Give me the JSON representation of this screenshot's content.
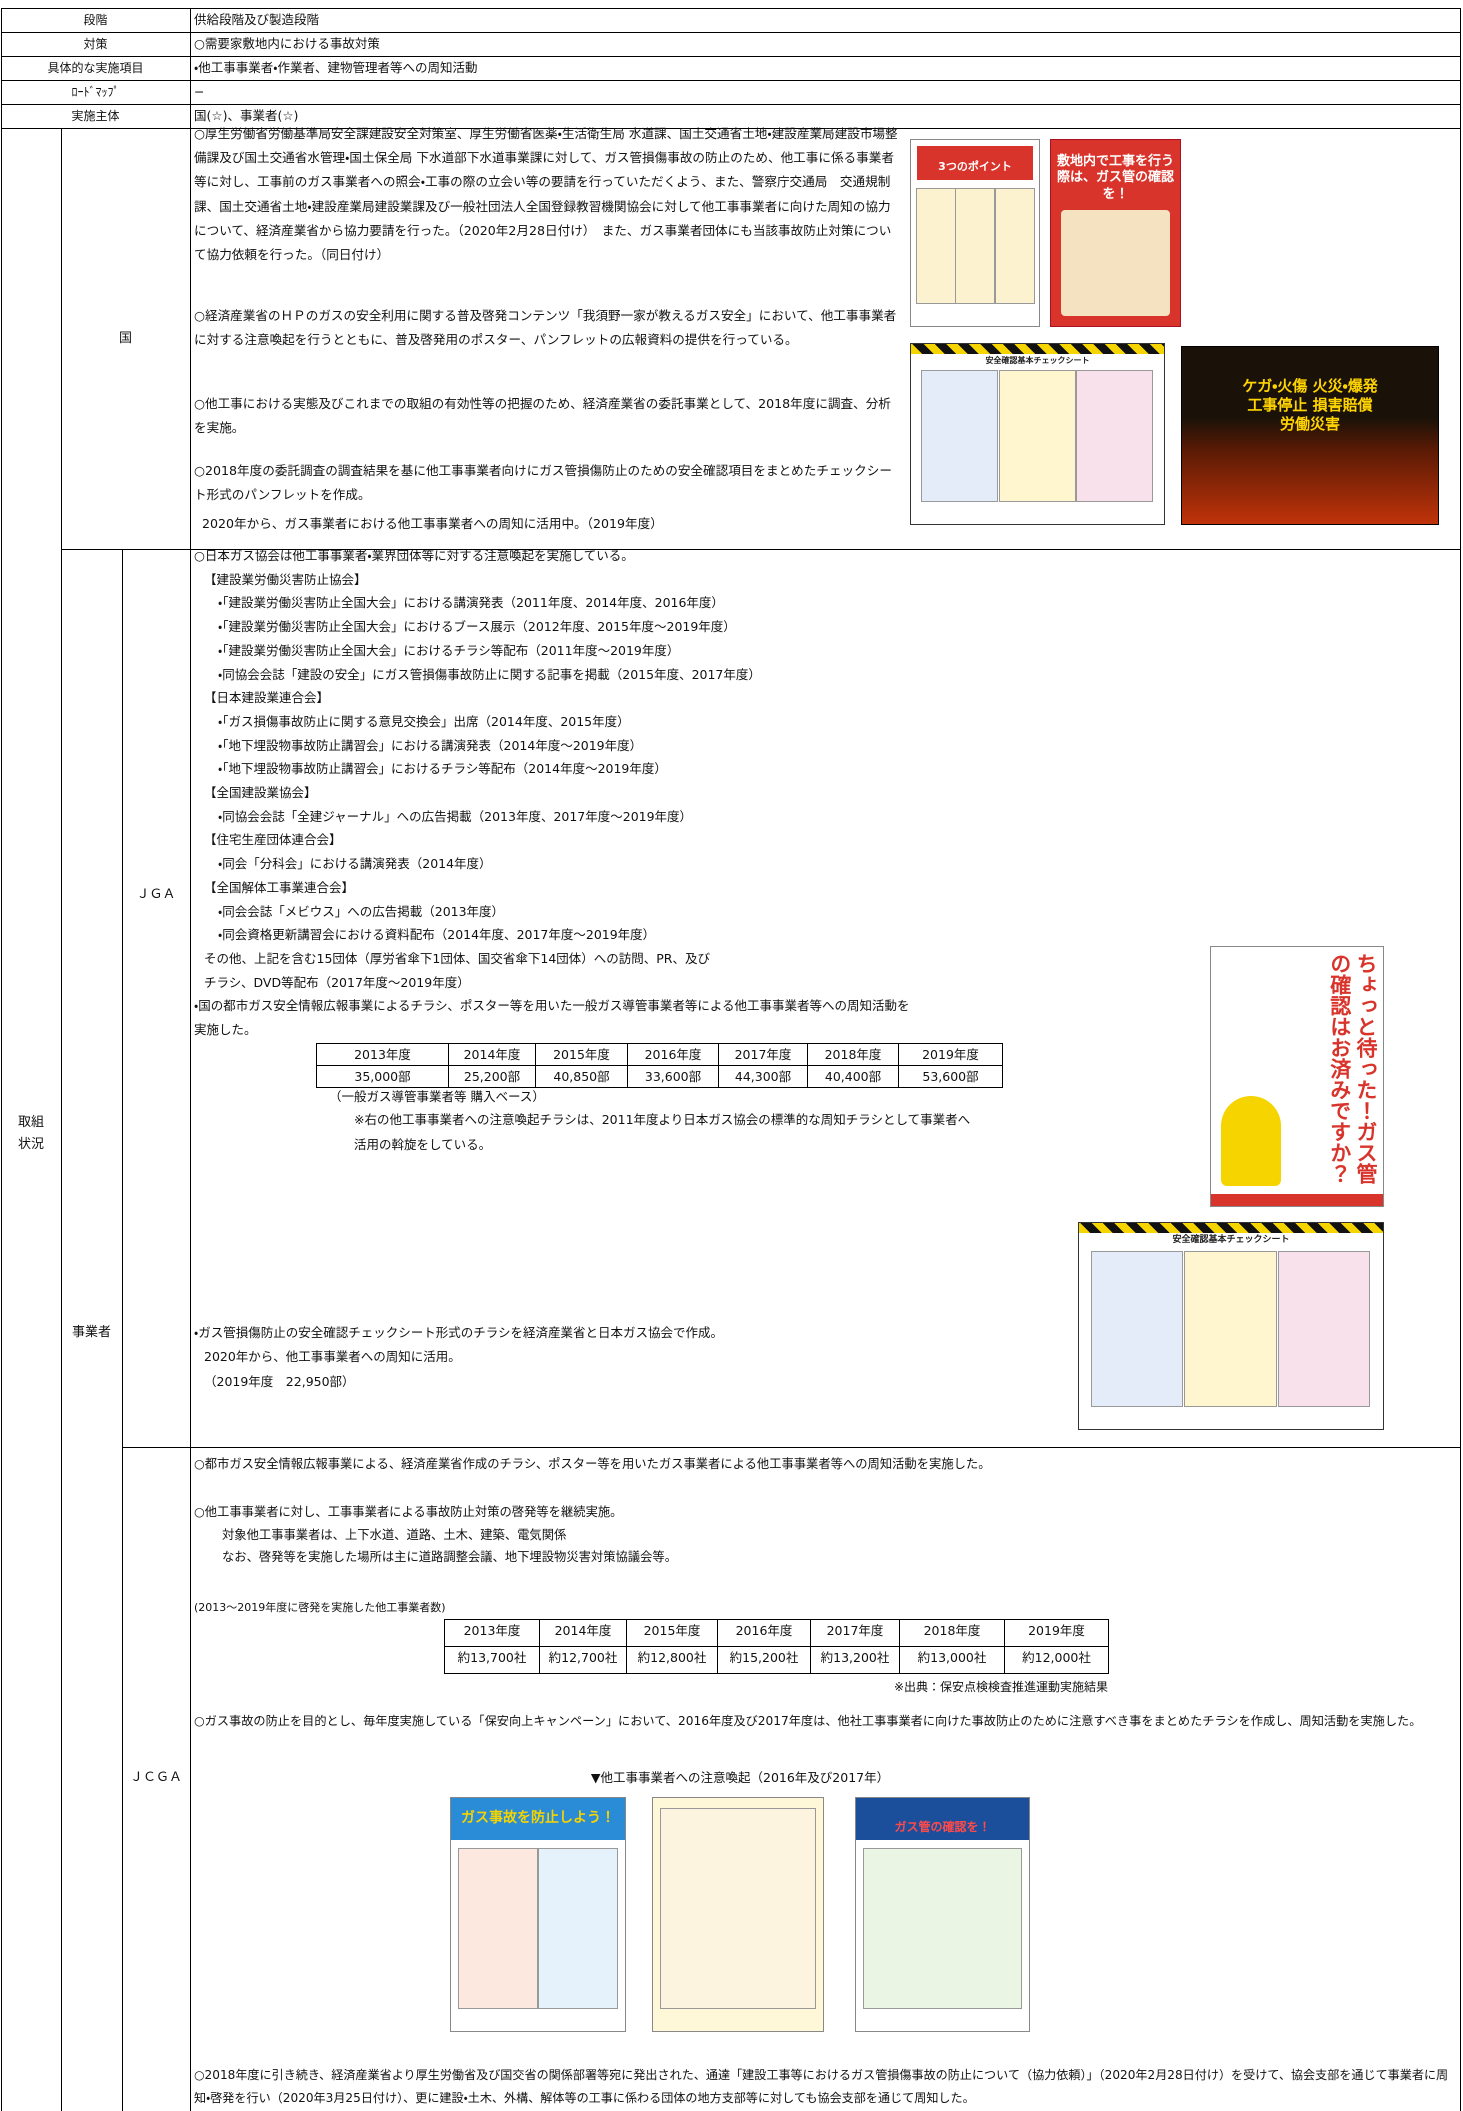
{
  "rows": [
    [
      "段階",
      "供給段階及び製造段階"
    ],
    [
      "対策",
      "○需要家敷地内における事故対策"
    ],
    [
      "具体的な実施項目",
      "・他工事事業者・作業者、建物管理者等への周知活動"
    ],
    [
      "ﾛｰﾄﾞﾏｯﾌﾟ",
      "−"
    ],
    [
      "実施主体",
      "国(☆)、事業者(☆)"
    ]
  ],
  "status_label": "取組状況",
  "kuni": {
    "label": "国",
    "paragraphs": [
      "○厚生労働省労働基準局安全課建設安全対策室、厚生労働省医薬・生活衛生局 水道課、国土交通省土地・建設産業局建設市場整備課及び国土交通省水管理・国土保全局 下水道部下水道事業課に対して、ガス管損傷事故の防止のため、他工事に係る事業者等に対し、工事前のガス事業者への照会・工事の際の立会い等の要請を行っていただくよう、また、警察庁交通局　交通規制課、国土交通省土地・建設産業局建設業課及び一般社団法人全国登録教習機関協会に対して他工事事業者に向けた周知の協力について、経済産業省から協力要請を行った。（2020年2月28日付け）　また、ガス事業者団体にも当該事故防止対策について協力依頼を行った。（同日付け）",
      "○経済産業省のＨＰのガスの安全利用に関する普及啓発コンテンツ「我須野一家が教えるガス安全」において、他工事事業者に対する注意喚起を行うとともに、普及啓発用のポスター、パンフレットの広報資料の提供を行っている。",
      "○他工事における実態及びこれまでの取組の有効性等の把握のため、経済産業省の委託事業として、2018年度に調査、分析を実施。",
      "○2018年度の委託調査の調査結果を基に他工事事業者向けにガス管損傷防止のための安全確認項目をまとめたチェックシート形式のパンフレットを作成。",
      "2020年から、ガス事業者における他工事事業者への周知に活用中。（2019年度）"
    ],
    "posters": [
      "3つのポイント",
      "敷地内で工事を行う際は、ガス管の確認を！",
      "安全確認基本チェックシート",
      "ケガ・火傷 火災・爆発 工事停止 損害賠償 労働災害"
    ]
  },
  "jigyosha": {
    "label": "事業者",
    "jga": {
      "label": "ＪＧＡ",
      "lines": [
        "○日本ガス協会は他工事事業者・業界団体等に対する注意喚起を実施している。",
        "【建設業労働災害防止協会】",
        "・「建設業労働災害防止全国大会」における講演発表（2011年度、2014年度、2016年度）",
        "・「建設業労働災害防止全国大会」におけるブース展示（2012年度、2015年度〜2019年度）",
        "・「建設業労働災害防止全国大会」におけるチラシ等配布（2011年度〜2019年度）",
        "・同協会会誌「建設の安全」にガス管損傷事故防止に関する記事を掲載（2015年度、2017年度）",
        "【日本建設業連合会】",
        "・「ガス損傷事故防止に関する意見交換会」出席（2014年度、2015年度）",
        "・「地下埋設物事故防止講習会」における講演発表（2014年度〜2019年度）",
        "・「地下埋設物事故防止講習会」におけるチラシ等配布（2014年度〜2019年度）",
        "【全国建設業協会】",
        "・同協会会誌「全建ジャーナル」への広告掲載（2013年度、2017年度〜2019年度）",
        "【住宅生産団体連合会】",
        "・同会「分科会」における講演発表（2014年度）",
        "【全国解体工事業連合会】",
        "・同会会誌「メビウス」への広告掲載（2013年度）",
        "・同会資格更新講習会における資料配布（2014年度、2017年度〜2019年度）",
        "その他、上記を含む15団体（厚労省傘下1団体、国交省傘下14団体）への訪問、PR、及び",
        "チラシ、DVD等配布（2017年度〜2019年度）",
        "・国の都市ガス安全情報広報事業によるチラシ、ポスター等を用いた一般ガス導管事業者等による他工事事業者等への周知活動を",
        "実施した。"
      ],
      "table": {
        "header": [
          "2013年度",
          "2014年度",
          "2015年度",
          "2016年度",
          "2017年度",
          "2018年度",
          "2019年度"
        ],
        "values": [
          "35,000部",
          "25,200部",
          "40,850部",
          "33,600部",
          "44,300部",
          "40,400部",
          "53,600部"
        ]
      },
      "notes": [
        "（一般ガス導管事業者等 購入ベース）",
        "※右の他工事事業者への注意喚起チラシは、2011年度より日本ガス協会の標準的な周知チラシとして事業者へ",
        "活用の斡旋をしている。"
      ],
      "checksheet_lines": [
        "・ガス管損傷防止の安全確認チェックシート形式のチラシを経済産業省と日本ガス協会で作成。",
        "2020年から、他工事事業者への周知に活用。",
        "（2019年度　22,950部）"
      ],
      "poster_title": "ちょっと待った！ガス管の確認はお済みですか？",
      "checksheet_title": "安全確認基本チェックシート"
    },
    "jcga": {
      "label": "ＪＣＧＡ",
      "lines": [
        "○都市ガス安全情報広報事業による、経済産業省作成のチラシ、ポスター等を用いたガス事業者による他工事事業者等への周知活動を実施した。",
        "○他工事事業者に対し、工事事業者による事故防止対策の啓発等を継続実施。",
        "対象他工事事業者は、上下水道、道路、土木、建築、電気関係",
        "なお、啓発等を実施した場所は主に道路調整会議、地下埋設物災害対策協議会等。"
      ],
      "table_caption": "(2013〜2019年度に啓発を実施した他工事業者数)",
      "table": {
        "header": [
          "2013年度",
          "2014年度",
          "2015年度",
          "2016年度",
          "2017年度",
          "2018年度",
          "2019年度"
        ],
        "values": [
          "約13,700社",
          "約12,700社",
          "約12,800社",
          "約15,200社",
          "約13,200社",
          "約13,000社",
          "約12,000社"
        ]
      },
      "source": "※出典：保安点検検査推進運動実施結果",
      "campaign": "○ガス事故の防止を目的とし、毎年度実施している「保安向上キャンペーン」において、2016年度及び2017年度は、他社工事事業者に向けた事故防止のために注意すべき事をまとめたチラシを作成し、周知活動を実施した。",
      "poster_caption": "▼他工事事業者への注意喚起（2016年及び2017年）",
      "posters": [
        "ガス事故を防止しよう！",
        "ガス管の確認を！"
      ],
      "final": "○2018年度に引き続き、経済産業省より厚生労働省及び国交省の関係部署等宛に発出された、通達「建設工事等におけるガス管損傷事故の防止について（協力依頼）」（2020年2月28日付け）を受けて、協会支部を通じて事業者に周知・啓発を行い（2020年3月25日付け）、更に建設・土木、外構、解体等の工事に係わる団体の地方支部等に対しても協会支部を通じて周知した。"
    }
  }
}
